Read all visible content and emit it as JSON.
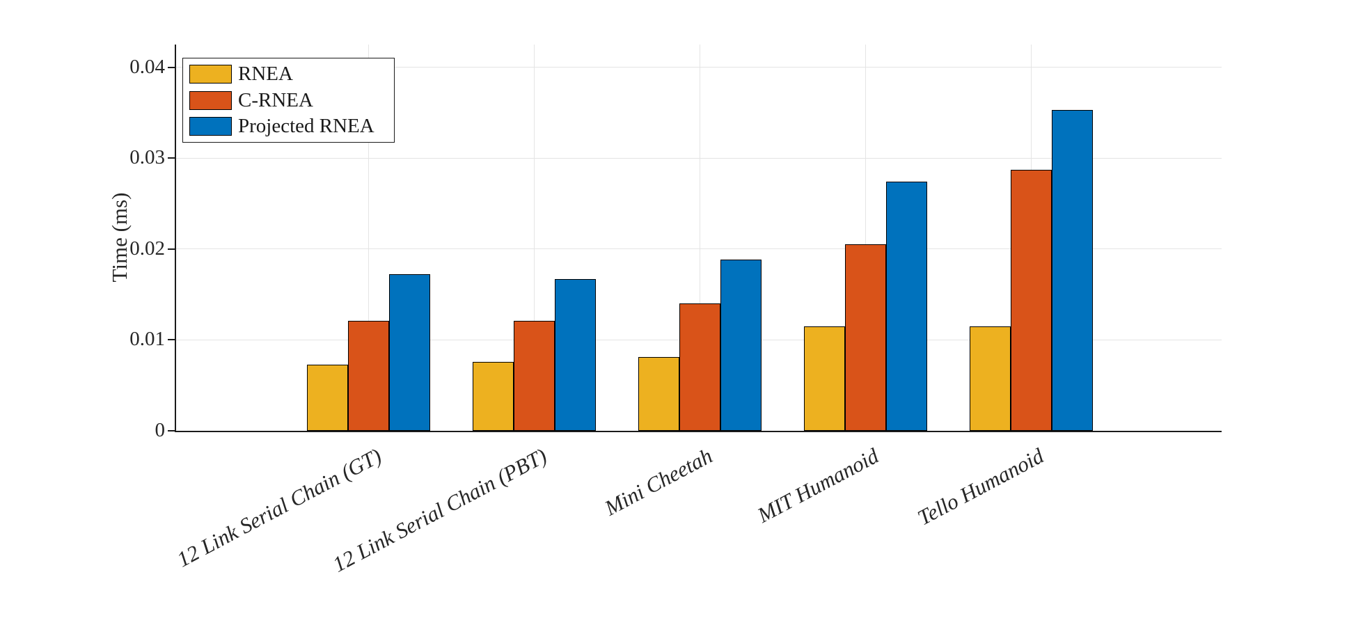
{
  "figure": {
    "background": "#FFFFFF"
  },
  "chart_data": {
    "type": "bar",
    "title": "",
    "xlabel": "",
    "ylabel": "Time (ms)",
    "categories": [
      "12 Link Serial Chain (GT)",
      "12 Link Serial Chain (PBT)",
      "Mini Cheetah",
      "MIT Humanoid",
      "Tello Humanoid"
    ],
    "series": [
      {
        "name": "RNEA",
        "color": "#EDB120",
        "values": [
          0.0073,
          0.0076,
          0.0081,
          0.0115,
          0.0115
        ]
      },
      {
        "name": "C-RNEA",
        "color": "#D95319",
        "values": [
          0.0121,
          0.0121,
          0.014,
          0.0205,
          0.0287
        ]
      },
      {
        "name": "Projected RNEA",
        "color": "#0072BD",
        "values": [
          0.0172,
          0.0167,
          0.0188,
          0.0274,
          0.0353
        ]
      }
    ],
    "ylim": [
      0,
      0.0425
    ],
    "yticks": [
      {
        "value": 0,
        "label": "0"
      },
      {
        "value": 0.01,
        "label": "0.01"
      },
      {
        "value": 0.02,
        "label": "0.02"
      },
      {
        "value": 0.03,
        "label": "0.03"
      },
      {
        "value": 0.04,
        "label": "0.04"
      }
    ],
    "grid": true,
    "grid_color": "#E4E4E4",
    "axis_color": "#1A1A1A",
    "bar_edge_color": "#000000",
    "legend_position": "top-left"
  }
}
